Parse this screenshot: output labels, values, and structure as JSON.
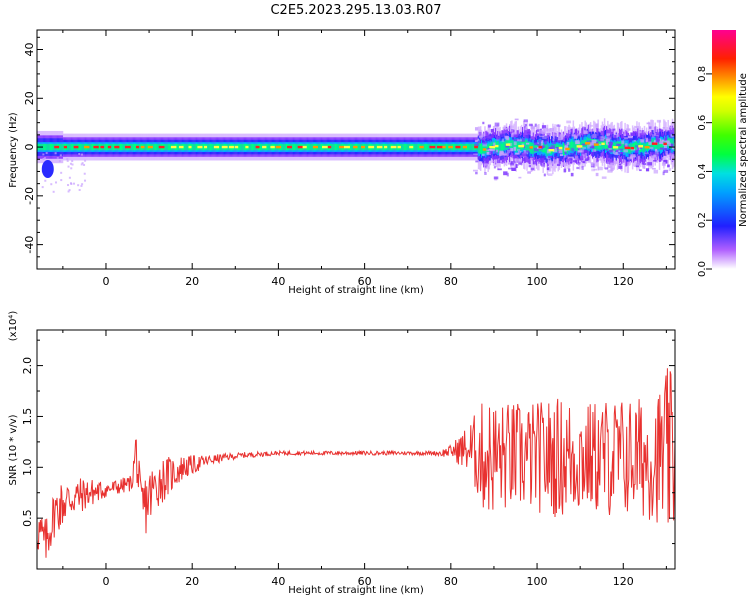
{
  "title": "C2E5.2023.295.13.03.R07",
  "colors": {
    "snr_line": "#e8312f",
    "axis": "#000000"
  },
  "chart_data": [
    {
      "type": "heatmap",
      "title": "C2E5.2023.295.13.03.R07",
      "xlabel": "Height of straight line (km)",
      "ylabel": "Frequency (Hz)",
      "xlim": [
        -16,
        132
      ],
      "ylim": [
        -50,
        48
      ],
      "xticks": [
        0,
        20,
        40,
        60,
        80,
        100,
        120
      ],
      "yticks": [
        -40,
        -20,
        0,
        20,
        40
      ],
      "colorbar": {
        "label": "Normalized spectral amplitude",
        "range": [
          0,
          0.98
        ],
        "ticks": [
          "0.0",
          "0.2",
          "0.4",
          "0.6",
          "0.8"
        ],
        "colormap": "rainbow (white-violet-blue-cyan-green-yellow-orange-red-magenta)"
      },
      "ridge": {
        "description": "high-amplitude band centered near 0 Hz over the full height range; broader and noisier above ~85 km",
        "center_freq_hz": 0
      },
      "grid": false
    },
    {
      "type": "line",
      "xlabel": "Height of straight line (km)",
      "ylabel": "SNR (10 * v/v)",
      "y_scale_note": "(x10⁴)",
      "xlim": [
        -16,
        132
      ],
      "ylim": [
        0,
        2.35
      ],
      "xticks": [
        0,
        20,
        40,
        60,
        80,
        100,
        120
      ],
      "yticks": [
        "0.5",
        "1.0",
        "1.5",
        "2.0"
      ],
      "series": [
        {
          "x": [
            -16,
            -14,
            -12,
            -10,
            -8,
            -6,
            -4,
            -2,
            0,
            2,
            4,
            6,
            7,
            8,
            10,
            12,
            14,
            16,
            18,
            20,
            24,
            28,
            32,
            36,
            40,
            50,
            60,
            70,
            78,
            80,
            84,
            88,
            92,
            96,
            100,
            104,
            108,
            112,
            116,
            120,
            124,
            128,
            130,
            132
          ],
          "y": [
            0.4,
            0.25,
            0.55,
            0.65,
            0.7,
            0.72,
            0.75,
            0.76,
            0.78,
            0.8,
            0.82,
            0.85,
            1.2,
            0.55,
            0.7,
            0.85,
            0.9,
            0.95,
            1.0,
            1.02,
            1.07,
            1.1,
            1.12,
            1.13,
            1.14,
            1.14,
            1.14,
            1.14,
            1.14,
            1.16,
            1.18,
            1.1,
            1.1,
            1.1,
            1.1,
            1.1,
            1.1,
            1.1,
            1.1,
            1.1,
            1.1,
            1.1,
            1.1,
            1.1
          ],
          "noise_envelope": {
            "x": [
              -16,
              -10,
              -4,
              0,
              6,
              8,
              12,
              18,
              24,
              30,
              40,
              76,
              80,
              84,
              88,
              92,
              96,
              100,
              104,
              108,
              112,
              116,
              120,
              124,
              128,
              130,
              132
            ],
            "amp": [
              0.25,
              0.25,
              0.15,
              0.08,
              0.08,
              0.35,
              0.25,
              0.12,
              0.05,
              0.03,
              0.02,
              0.02,
              0.06,
              0.25,
              0.6,
              0.55,
              0.55,
              0.55,
              0.6,
              0.6,
              0.55,
              0.6,
              0.6,
              0.6,
              0.65,
              0.9,
              0.8
            ]
          }
        }
      ],
      "grid": false
    }
  ]
}
